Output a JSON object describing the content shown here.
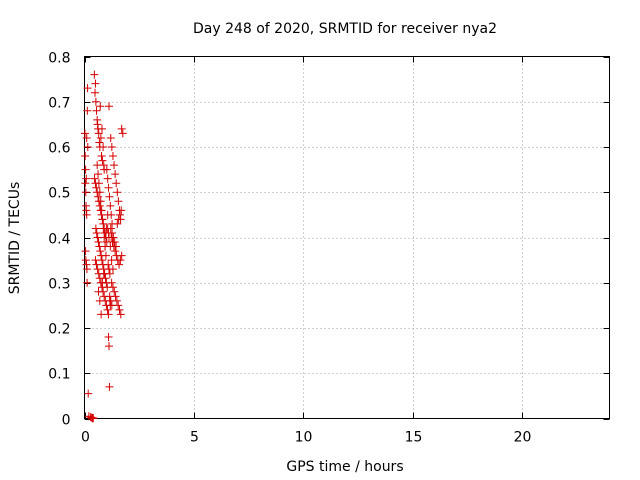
{
  "chart_data": {
    "type": "scatter",
    "title": "Day 248 of 2020, SRMTID for receiver nya2",
    "xlabel": "GPS time / hours",
    "ylabel": "SRMTID / TECUs",
    "xlim": [
      0,
      24
    ],
    "ylim": [
      0,
      0.8
    ],
    "xticks": [
      0,
      5,
      10,
      15,
      20
    ],
    "yticks": [
      0,
      0.1,
      0.2,
      0.3,
      0.4,
      0.5,
      0.6,
      0.7,
      0.8
    ],
    "xtick_labels": [
      "0",
      "5",
      "10",
      "15",
      "20"
    ],
    "ytick_labels": [
      "0",
      "0.1",
      "0.2",
      "0.3",
      "0.4",
      "0.5",
      "0.6",
      "0.7",
      "0.8"
    ],
    "grid": true,
    "marker": "plus",
    "color": "#d40000",
    "x": [
      0.02,
      0.03,
      0.05,
      0.04,
      0.06,
      0.07,
      0.08,
      0.1,
      0.05,
      0.06,
      0.09,
      0.11,
      0.12,
      0.13,
      0.14,
      0.15,
      0.08,
      0.1,
      0.17,
      0.2,
      0.28,
      0.33,
      0.36,
      0.38,
      0.4,
      0.45,
      0.48,
      0.5,
      0.52,
      0.55,
      0.58,
      0.6,
      0.62,
      0.65,
      0.68,
      0.7,
      0.72,
      0.75,
      0.78,
      0.8,
      0.82,
      0.85,
      0.88,
      0.9,
      0.46,
      0.5,
      0.54,
      0.58,
      0.62,
      0.66,
      0.7,
      0.74,
      0.78,
      0.82,
      0.86,
      0.9,
      0.94,
      0.98,
      1.02,
      1.06,
      1.1,
      0.52,
      0.56,
      0.6,
      0.64,
      0.68,
      0.72,
      0.76,
      0.8,
      0.84,
      0.88,
      0.92,
      0.96,
      1.0,
      1.04,
      1.08,
      1.12,
      1.16,
      0.5,
      0.55,
      0.6,
      0.65,
      0.7,
      0.75,
      0.8,
      0.85,
      0.9,
      0.95,
      1.0,
      1.05,
      1.1,
      1.15,
      1.2,
      1.25,
      0.58,
      0.62,
      0.66,
      0.7,
      0.74,
      0.78,
      0.82,
      0.86,
      0.9,
      0.94,
      0.98,
      1.02,
      1.06,
      1.1,
      1.14,
      1.18,
      1.22,
      1.26,
      0.64,
      0.7,
      0.76,
      0.82,
      0.88,
      0.94,
      1.0,
      1.06,
      1.12,
      1.18,
      1.24,
      1.3,
      1.2,
      1.25,
      1.3,
      1.35,
      1.4,
      1.45,
      1.5,
      1.55,
      1.6,
      1.65,
      1.7,
      1.75,
      1.22,
      1.28,
      1.34,
      1.4,
      1.46,
      1.52,
      1.58,
      1.64,
      1.7,
      1.2,
      1.26,
      1.32,
      1.38,
      1.44,
      1.5,
      1.56,
      1.62,
      1.68,
      1.24,
      1.3,
      1.36,
      1.42,
      1.48,
      1.54,
      1.6,
      1.66,
      1.1,
      1.12,
      1.14,
      1.16,
      1.18,
      1.12
    ],
    "y": [
      0.63,
      0.58,
      0.55,
      0.52,
      0.5,
      0.47,
      0.46,
      0.45,
      0.37,
      0.35,
      0.34,
      0.33,
      0.3,
      0.68,
      0.73,
      0.6,
      0.53,
      0.62,
      0.055,
      0.005,
      0.003,
      0.002,
      0.001,
      0.0,
      0.001,
      0.76,
      0.72,
      0.74,
      0.7,
      0.68,
      0.66,
      0.65,
      0.64,
      0.63,
      0.61,
      0.6,
      0.69,
      0.62,
      0.58,
      0.64,
      0.57,
      0.6,
      0.56,
      0.55,
      0.53,
      0.52,
      0.51,
      0.5,
      0.49,
      0.48,
      0.47,
      0.46,
      0.45,
      0.44,
      0.43,
      0.42,
      0.41,
      0.4,
      0.39,
      0.42,
      0.41,
      0.42,
      0.41,
      0.4,
      0.39,
      0.38,
      0.37,
      0.36,
      0.35,
      0.34,
      0.33,
      0.32,
      0.31,
      0.3,
      0.29,
      0.34,
      0.33,
      0.32,
      0.35,
      0.34,
      0.33,
      0.32,
      0.31,
      0.3,
      0.29,
      0.28,
      0.27,
      0.26,
      0.25,
      0.24,
      0.23,
      0.27,
      0.26,
      0.25,
      0.56,
      0.54,
      0.52,
      0.5,
      0.48,
      0.46,
      0.44,
      0.42,
      0.4,
      0.38,
      0.36,
      0.55,
      0.53,
      0.51,
      0.49,
      0.47,
      0.45,
      0.43,
      0.28,
      0.26,
      0.23,
      0.3,
      0.32,
      0.38,
      0.42,
      0.45,
      0.4,
      0.38,
      0.35,
      0.33,
      0.62,
      0.6,
      0.58,
      0.56,
      0.54,
      0.52,
      0.5,
      0.48,
      0.46,
      0.44,
      0.64,
      0.63,
      0.4,
      0.39,
      0.38,
      0.37,
      0.36,
      0.35,
      0.34,
      0.35,
      0.36,
      0.42,
      0.41,
      0.4,
      0.39,
      0.38,
      0.43,
      0.44,
      0.45,
      0.46,
      0.3,
      0.29,
      0.28,
      0.27,
      0.26,
      0.25,
      0.24,
      0.23,
      0.18,
      0.16,
      0.07,
      0.26,
      0.25,
      0.69
    ]
  }
}
